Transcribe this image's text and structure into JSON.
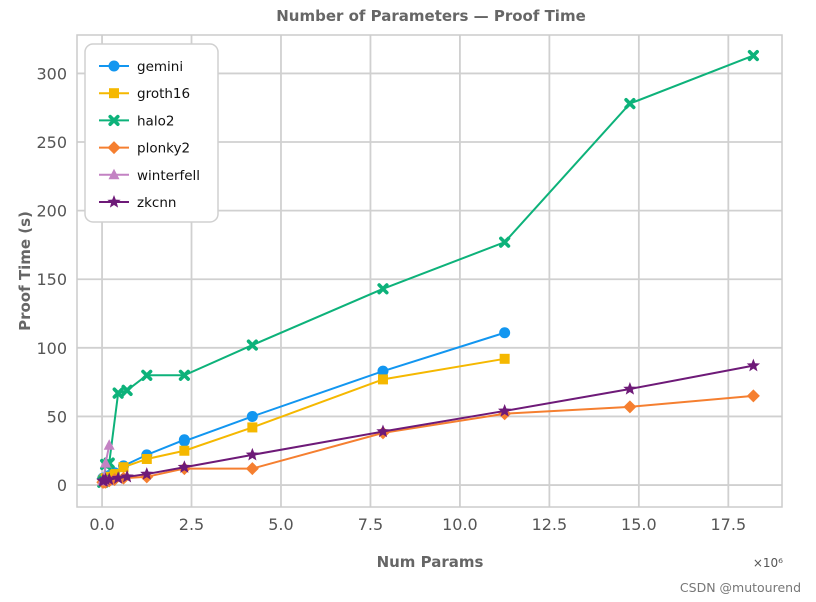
{
  "colors": {
    "gemini": "#1296f0",
    "groth16": "#f5b800",
    "halo2": "#0db27a",
    "plonky2": "#f57f30",
    "winterfell": "#c382c3",
    "zkcnn": "#6e1a78",
    "grid": "#d0d0d0",
    "frame": "#cccccc"
  },
  "watermark": "CSDN @mutourend",
  "chart_data": {
    "type": "line",
    "title": "Number of Parameters — Proof Time",
    "xlabel": "Num Params",
    "ylabel": "Proof Time (s)",
    "x_scale_label": "×10⁶",
    "xlim": [
      -0.7,
      19.0
    ],
    "ylim": [
      -16,
      328
    ],
    "xticks": [
      0.0,
      2.5,
      5.0,
      7.5,
      10.0,
      12.5,
      15.0,
      17.5
    ],
    "xtick_labels": [
      "0.0",
      "2.5",
      "5.0",
      "7.5",
      "10.0",
      "12.5",
      "15.0",
      "17.5"
    ],
    "yticks": [
      0,
      50,
      100,
      150,
      200,
      250,
      300
    ],
    "ytick_labels": [
      "0",
      "50",
      "100",
      "150",
      "200",
      "250",
      "300"
    ],
    "grid": true,
    "legend_position": "top-left",
    "series": [
      {
        "name": "gemini",
        "marker": "circle",
        "points": [
          [
            0.02,
            5
          ],
          [
            0.05,
            5
          ],
          [
            0.1,
            5
          ],
          [
            0.2,
            7
          ],
          [
            0.35,
            9
          ],
          [
            0.6,
            14
          ],
          [
            1.25,
            22
          ],
          [
            2.3,
            33
          ],
          [
            2.3,
            32
          ],
          [
            4.2,
            50
          ],
          [
            7.85,
            83
          ],
          [
            11.25,
            111
          ]
        ]
      },
      {
        "name": "groth16",
        "marker": "square",
        "points": [
          [
            0.02,
            3
          ],
          [
            0.05,
            4
          ],
          [
            0.1,
            5
          ],
          [
            0.2,
            6
          ],
          [
            0.35,
            8
          ],
          [
            0.6,
            13
          ],
          [
            1.25,
            19
          ],
          [
            2.3,
            25
          ],
          [
            4.2,
            42
          ],
          [
            7.85,
            77
          ],
          [
            11.25,
            92
          ]
        ]
      },
      {
        "name": "halo2",
        "marker": "x",
        "points": [
          [
            0.02,
            2
          ],
          [
            0.05,
            3
          ],
          [
            0.1,
            15
          ],
          [
            0.2,
            16
          ],
          [
            0.45,
            67
          ],
          [
            0.7,
            69
          ],
          [
            1.25,
            80
          ],
          [
            2.3,
            80
          ],
          [
            4.2,
            102
          ],
          [
            7.85,
            143
          ],
          [
            11.25,
            177
          ],
          [
            14.75,
            278
          ],
          [
            18.2,
            313
          ]
        ]
      },
      {
        "name": "plonky2",
        "marker": "diamond",
        "points": [
          [
            0.02,
            2
          ],
          [
            0.05,
            2
          ],
          [
            0.1,
            2
          ],
          [
            0.2,
            3
          ],
          [
            0.35,
            4
          ],
          [
            0.6,
            5
          ],
          [
            1.25,
            6
          ],
          [
            2.3,
            12
          ],
          [
            4.2,
            12
          ],
          [
            7.85,
            38
          ],
          [
            11.25,
            52
          ],
          [
            14.75,
            57
          ],
          [
            18.2,
            65
          ]
        ]
      },
      {
        "name": "winterfell",
        "marker": "triangle",
        "points": [
          [
            0.02,
            3
          ],
          [
            0.05,
            5
          ],
          [
            0.1,
            16
          ],
          [
            0.2,
            29
          ]
        ]
      },
      {
        "name": "zkcnn",
        "marker": "star",
        "points": [
          [
            0.02,
            3
          ],
          [
            0.05,
            3
          ],
          [
            0.1,
            4
          ],
          [
            0.2,
            4
          ],
          [
            0.45,
            5
          ],
          [
            0.7,
            6
          ],
          [
            1.25,
            8
          ],
          [
            2.3,
            13
          ],
          [
            4.2,
            22
          ],
          [
            7.85,
            39
          ],
          [
            11.25,
            54
          ],
          [
            14.75,
            70
          ],
          [
            18.2,
            87
          ]
        ]
      }
    ]
  }
}
